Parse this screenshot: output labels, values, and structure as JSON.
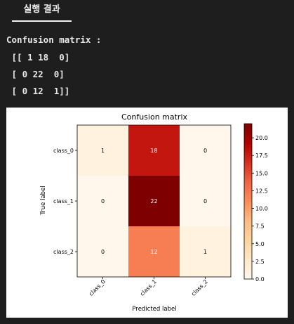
{
  "tab": {
    "label": "실행 결과"
  },
  "output": {
    "lines": [
      "Confusion matrix :",
      " [[ 1 18  0]",
      " [ 0 22  0]",
      " [ 0 12  1]]"
    ]
  },
  "chart_data": {
    "type": "heatmap",
    "title": "Confusion matrix",
    "xlabel": "Predicted label",
    "ylabel": "True label",
    "x_categories": [
      "class_0",
      "class_1",
      "class_2"
    ],
    "y_categories": [
      "class_0",
      "class_1",
      "class_2"
    ],
    "values": [
      [
        1,
        18,
        0
      ],
      [
        0,
        22,
        0
      ],
      [
        0,
        12,
        1
      ]
    ],
    "colormap": "OrRd",
    "colorbar": {
      "min": 0.0,
      "max": 22,
      "ticks": [
        "0.0",
        "2.5",
        "5.0",
        "7.5",
        "10.0",
        "12.5",
        "15.0",
        "17.5",
        "20.0"
      ]
    },
    "colors": {
      "max": "#7f0000",
      "min": "#fff7ec"
    }
  }
}
